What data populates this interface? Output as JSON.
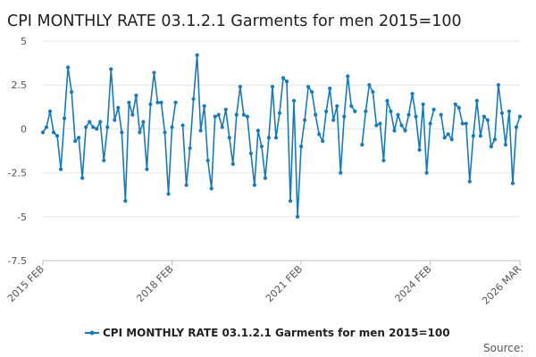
{
  "colors": {
    "series": "#1b7ab6",
    "grid": "#e6e6e6",
    "axis": "#bfbfbf",
    "background": "#ffffff"
  },
  "source_label": "Source:",
  "chart_data": {
    "type": "line",
    "title": "CPI MONTHLY RATE 03.1.2.1 Garments for men 2015=100",
    "xlabel": "",
    "ylabel": "",
    "ylim": [
      -7.5,
      5
    ],
    "yticks": [
      5,
      2.5,
      0,
      -2.5,
      -5,
      -7.5
    ],
    "ytick_labels": [
      "5",
      "2.5",
      "0",
      "-2.5",
      "-5",
      "-7.5"
    ],
    "grid": true,
    "legend": "bottom",
    "start_period": "2015 FEB",
    "xtick_labels": [
      {
        "label": "2015 FEB",
        "index": 0
      },
      {
        "label": "2018 FEB",
        "index": 36
      },
      {
        "label": "2021 FEB",
        "index": 72
      },
      {
        "label": "2024 FEB",
        "index": 108
      },
      {
        "label": "2026 MAR",
        "index": 133
      }
    ],
    "series": [
      {
        "name": "CPI MONTHLY RATE 03.1.2.1 Garments for men 2015=100",
        "values": [
          -0.2,
          0.1,
          1.0,
          -0.2,
          -0.4,
          -2.3,
          0.6,
          3.5,
          2.1,
          -0.7,
          -0.5,
          -2.8,
          0.1,
          0.4,
          0.1,
          0.0,
          0.4,
          -1.8,
          0.1,
          3.4,
          0.5,
          1.2,
          -0.2,
          -4.1,
          1.5,
          0.8,
          1.9,
          -0.2,
          0.4,
          -2.3,
          1.4,
          3.2,
          1.5,
          1.5,
          -0.2,
          -3.7,
          0.1,
          1.5,
          null,
          0.2,
          -3.2,
          -1.1,
          1.7,
          4.2,
          -0.1,
          1.3,
          -1.8,
          -3.4,
          0.7,
          0.8,
          0.1,
          1.1,
          -0.5,
          -2.0,
          0.8,
          2.4,
          0.8,
          0.7,
          -1.4,
          -3.2,
          -0.1,
          -1.0,
          -2.8,
          -0.5,
          2.4,
          -0.5,
          0.9,
          2.9,
          2.7,
          -4.1,
          1.6,
          -5.0,
          -1.0,
          0.5,
          2.4,
          2.1,
          0.8,
          -0.3,
          -0.7,
          1.0,
          2.3,
          0.5,
          1.3,
          -2.5,
          0.7,
          3.0,
          1.3,
          1.0,
          null,
          -0.9,
          1.0,
          2.5,
          2.1,
          0.2,
          0.3,
          -1.8,
          1.6,
          1.0,
          -0.1,
          0.8,
          0.2,
          -0.1,
          0.8,
          2.0,
          0.7,
          -1.2,
          1.4,
          -2.5,
          0.3,
          1.1,
          null,
          0.8,
          -0.5,
          -0.3,
          -0.6,
          1.4,
          1.2,
          0.3,
          0.3,
          -3.0,
          -0.4,
          1.6,
          -0.4,
          0.7,
          0.5,
          -1.0,
          -0.6,
          2.5,
          0.9,
          -0.9,
          1.0,
          -3.1,
          0.1,
          0.7
        ]
      }
    ]
  }
}
